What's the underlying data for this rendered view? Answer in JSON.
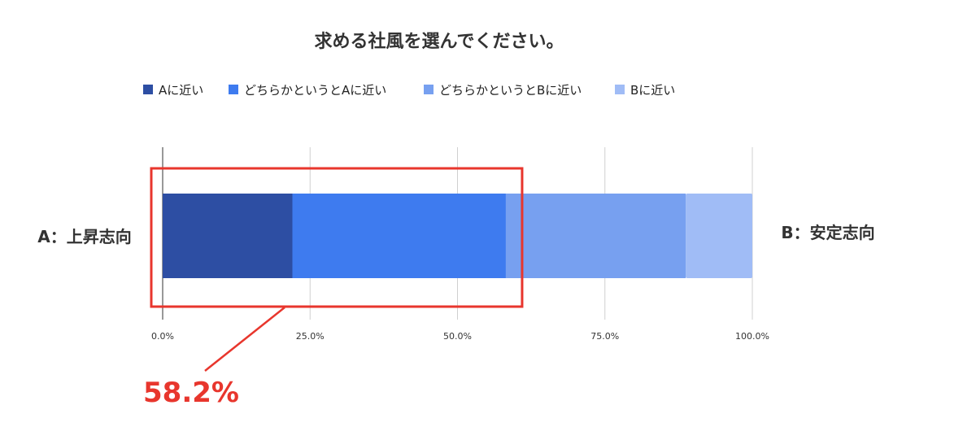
{
  "chart_data": {
    "type": "bar",
    "orientation": "horizontal",
    "stacked": true,
    "title": "求める社風を選んでください。",
    "left_label": "A：上昇志向",
    "right_label": "B：安定志向",
    "series": [
      {
        "name": "Aに近い",
        "value": 22.0,
        "color": "#2d4ea3"
      },
      {
        "name": "どちらかというとAに近い",
        "value": 36.2,
        "color": "#3e7bef"
      },
      {
        "name": "どちらかというとBに近い",
        "value": 30.5,
        "color": "#77a0f0"
      },
      {
        "name": "Bに近い",
        "value": 11.3,
        "color": "#a0bcf6"
      }
    ],
    "xlim": [
      0,
      100
    ],
    "ticks": [
      "0.0%",
      "25.0%",
      "50.0%",
      "75.0%",
      "100.0%"
    ],
    "grid": true,
    "legend_position": "top"
  },
  "annotation": {
    "label": "58.2%",
    "value": 58.2,
    "color": "#e8362d"
  },
  "colors": {
    "gridline": "#d0d0d0",
    "axis": "#555555"
  }
}
